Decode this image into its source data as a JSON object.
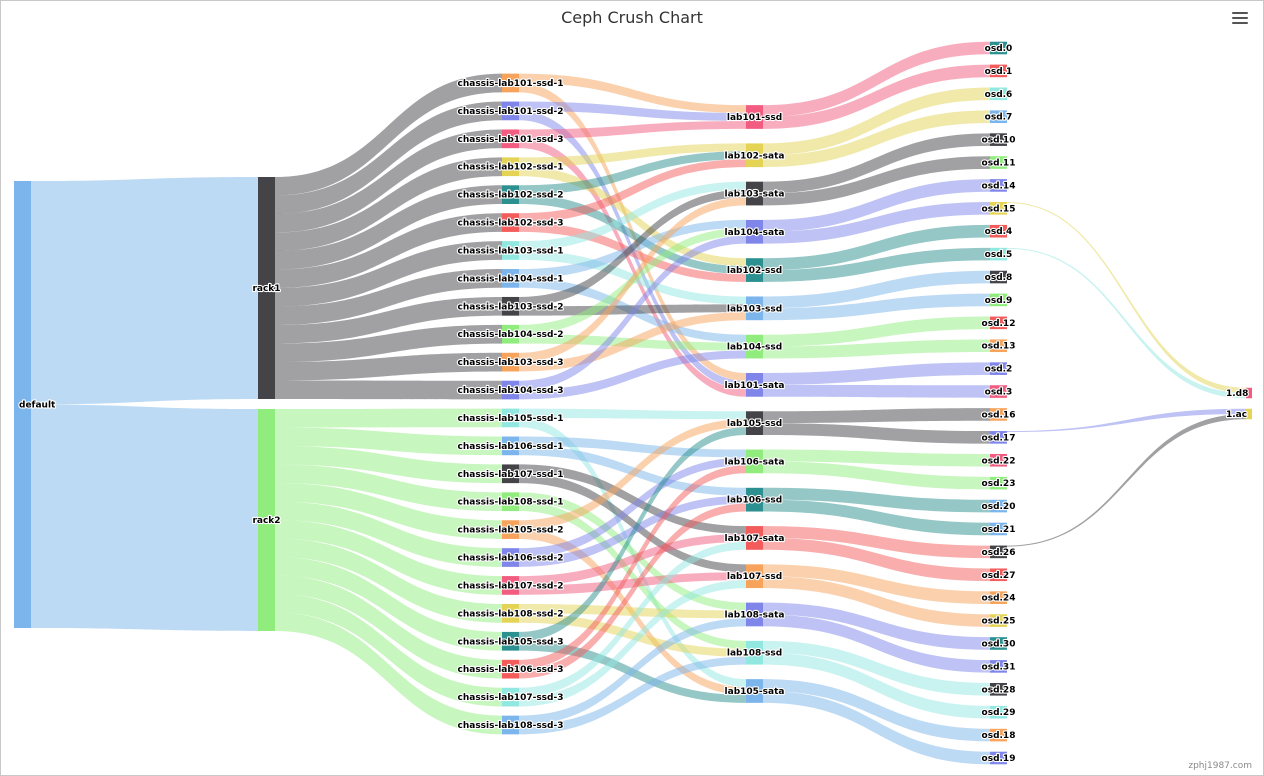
{
  "title": "Ceph Crush Chart",
  "credit": "zphj1987.com",
  "menu_icon": "hamburger-menu-icon",
  "chart_data": {
    "type": "sankey",
    "title": "Ceph Crush Chart",
    "columns": [
      [
        "default"
      ],
      [
        "rack1",
        "rack2"
      ],
      [
        "chassis-lab101-ssd-1",
        "chassis-lab101-ssd-2",
        "chassis-lab101-ssd-3",
        "chassis-lab102-ssd-1",
        "chassis-lab102-ssd-2",
        "chassis-lab102-ssd-3",
        "chassis-lab103-ssd-1",
        "chassis-lab104-ssd-1",
        "chassis-lab103-ssd-2",
        "chassis-lab104-ssd-2",
        "chassis-lab103-ssd-3",
        "chassis-lab104-ssd-3",
        "chassis-lab105-ssd-1",
        "chassis-lab106-ssd-1",
        "chassis-lab107-ssd-1",
        "chassis-lab108-ssd-1",
        "chassis-lab105-ssd-2",
        "chassis-lab106-ssd-2",
        "chassis-lab107-ssd-2",
        "chassis-lab108-ssd-2",
        "chassis-lab105-ssd-3",
        "chassis-lab106-ssd-3",
        "chassis-lab107-ssd-3",
        "chassis-lab108-ssd-3"
      ],
      [
        "lab101-ssd",
        "lab102-sata",
        "lab103-sata",
        "lab104-sata",
        "lab102-ssd",
        "lab103-ssd",
        "lab104-ssd",
        "lab101-sata",
        "lab105-ssd",
        "lab106-sata",
        "lab106-ssd",
        "lab107-sata",
        "lab107-ssd",
        "lab108-sata",
        "lab108-ssd",
        "lab105-sata"
      ],
      [
        "osd.0",
        "osd.1",
        "osd.6",
        "osd.7",
        "osd.10",
        "osd.11",
        "osd.14",
        "osd.15",
        "osd.4",
        "osd.5",
        "osd.8",
        "osd.9",
        "osd.12",
        "osd.13",
        "osd.2",
        "osd.3",
        "osd.16",
        "osd.17",
        "osd.22",
        "osd.23",
        "osd.20",
        "osd.21",
        "osd.26",
        "osd.27",
        "osd.24",
        "osd.25",
        "osd.30",
        "osd.31",
        "osd.28",
        "osd.29",
        "osd.18",
        "osd.19"
      ],
      [
        "1.d8",
        "1.ac"
      ]
    ],
    "links": [
      [
        "default",
        "rack1",
        12
      ],
      [
        "default",
        "rack2",
        12
      ],
      [
        "rack1",
        "chassis-lab101-ssd-1",
        1
      ],
      [
        "rack1",
        "chassis-lab101-ssd-2",
        1
      ],
      [
        "rack1",
        "chassis-lab101-ssd-3",
        1
      ],
      [
        "rack1",
        "chassis-lab102-ssd-1",
        1
      ],
      [
        "rack1",
        "chassis-lab102-ssd-2",
        1
      ],
      [
        "rack1",
        "chassis-lab102-ssd-3",
        1
      ],
      [
        "rack1",
        "chassis-lab103-ssd-1",
        1
      ],
      [
        "rack1",
        "chassis-lab104-ssd-1",
        1
      ],
      [
        "rack1",
        "chassis-lab103-ssd-2",
        1
      ],
      [
        "rack1",
        "chassis-lab104-ssd-2",
        1
      ],
      [
        "rack1",
        "chassis-lab103-ssd-3",
        1
      ],
      [
        "rack1",
        "chassis-lab104-ssd-3",
        1
      ],
      [
        "rack2",
        "chassis-lab105-ssd-1",
        1
      ],
      [
        "rack2",
        "chassis-lab106-ssd-1",
        1
      ],
      [
        "rack2",
        "chassis-lab107-ssd-1",
        1
      ],
      [
        "rack2",
        "chassis-lab108-ssd-1",
        1
      ],
      [
        "rack2",
        "chassis-lab105-ssd-2",
        1
      ],
      [
        "rack2",
        "chassis-lab106-ssd-2",
        1
      ],
      [
        "rack2",
        "chassis-lab107-ssd-2",
        1
      ],
      [
        "rack2",
        "chassis-lab108-ssd-2",
        1
      ],
      [
        "rack2",
        "chassis-lab105-ssd-3",
        1
      ],
      [
        "rack2",
        "chassis-lab106-ssd-3",
        1
      ],
      [
        "rack2",
        "chassis-lab107-ssd-3",
        1
      ],
      [
        "rack2",
        "chassis-lab108-ssd-3",
        1
      ],
      [
        "chassis-lab101-ssd-1",
        "lab101-ssd",
        0.5
      ],
      [
        "chassis-lab101-ssd-1",
        "lab101-sata",
        0.5
      ],
      [
        "chassis-lab101-ssd-2",
        "lab101-ssd",
        0.5
      ],
      [
        "chassis-lab101-ssd-2",
        "lab101-sata",
        0.5
      ],
      [
        "chassis-lab101-ssd-3",
        "lab101-ssd",
        0.5
      ],
      [
        "chassis-lab101-ssd-3",
        "lab101-sata",
        0.5
      ],
      [
        "chassis-lab102-ssd-1",
        "lab102-sata",
        0.5
      ],
      [
        "chassis-lab102-ssd-1",
        "lab102-ssd",
        0.5
      ],
      [
        "chassis-lab102-ssd-2",
        "lab102-sata",
        0.5
      ],
      [
        "chassis-lab102-ssd-2",
        "lab102-ssd",
        0.5
      ],
      [
        "chassis-lab102-ssd-3",
        "lab102-sata",
        0.5
      ],
      [
        "chassis-lab102-ssd-3",
        "lab102-ssd",
        0.5
      ],
      [
        "chassis-lab103-ssd-1",
        "lab103-sata",
        0.5
      ],
      [
        "chassis-lab103-ssd-1",
        "lab103-ssd",
        0.5
      ],
      [
        "chassis-lab104-ssd-1",
        "lab104-sata",
        0.5
      ],
      [
        "chassis-lab104-ssd-1",
        "lab104-ssd",
        0.5
      ],
      [
        "chassis-lab103-ssd-2",
        "lab103-sata",
        0.5
      ],
      [
        "chassis-lab103-ssd-2",
        "lab103-ssd",
        0.5
      ],
      [
        "chassis-lab104-ssd-2",
        "lab104-sata",
        0.5
      ],
      [
        "chassis-lab104-ssd-2",
        "lab104-ssd",
        0.5
      ],
      [
        "chassis-lab103-ssd-3",
        "lab103-sata",
        0.5
      ],
      [
        "chassis-lab103-ssd-3",
        "lab103-ssd",
        0.5
      ],
      [
        "chassis-lab104-ssd-3",
        "lab104-sata",
        0.5
      ],
      [
        "chassis-lab104-ssd-3",
        "lab104-ssd",
        0.5
      ],
      [
        "chassis-lab105-ssd-1",
        "lab105-ssd",
        0.5
      ],
      [
        "chassis-lab105-ssd-1",
        "lab105-sata",
        0.5
      ],
      [
        "chassis-lab106-ssd-1",
        "lab106-sata",
        0.5
      ],
      [
        "chassis-lab106-ssd-1",
        "lab106-ssd",
        0.5
      ],
      [
        "chassis-lab107-ssd-1",
        "lab107-sata",
        0.5
      ],
      [
        "chassis-lab107-ssd-1",
        "lab107-ssd",
        0.5
      ],
      [
        "chassis-lab108-ssd-1",
        "lab108-sata",
        0.5
      ],
      [
        "chassis-lab108-ssd-1",
        "lab108-ssd",
        0.5
      ],
      [
        "chassis-lab105-ssd-2",
        "lab105-ssd",
        0.5
      ],
      [
        "chassis-lab105-ssd-2",
        "lab105-sata",
        0.5
      ],
      [
        "chassis-lab106-ssd-2",
        "lab106-sata",
        0.5
      ],
      [
        "chassis-lab106-ssd-2",
        "lab106-ssd",
        0.5
      ],
      [
        "chassis-lab107-ssd-2",
        "lab107-sata",
        0.5
      ],
      [
        "chassis-lab107-ssd-2",
        "lab107-ssd",
        0.5
      ],
      [
        "chassis-lab108-ssd-2",
        "lab108-sata",
        0.5
      ],
      [
        "chassis-lab108-ssd-2",
        "lab108-ssd",
        0.5
      ],
      [
        "chassis-lab105-ssd-3",
        "lab105-ssd",
        0.5
      ],
      [
        "chassis-lab105-ssd-3",
        "lab105-sata",
        0.5
      ],
      [
        "chassis-lab106-ssd-3",
        "lab106-sata",
        0.5
      ],
      [
        "chassis-lab106-ssd-3",
        "lab106-ssd",
        0.5
      ],
      [
        "chassis-lab107-ssd-3",
        "lab107-sata",
        0.5
      ],
      [
        "chassis-lab107-ssd-3",
        "lab107-ssd",
        0.5
      ],
      [
        "chassis-lab108-ssd-3",
        "lab108-sata",
        0.5
      ],
      [
        "chassis-lab108-ssd-3",
        "lab108-ssd",
        0.5
      ],
      [
        "lab101-ssd",
        "osd.0",
        0.75
      ],
      [
        "lab101-ssd",
        "osd.1",
        0.75
      ],
      [
        "lab102-sata",
        "osd.6",
        0.75
      ],
      [
        "lab102-sata",
        "osd.7",
        0.75
      ],
      [
        "lab103-sata",
        "osd.10",
        0.75
      ],
      [
        "lab103-sata",
        "osd.11",
        0.75
      ],
      [
        "lab104-sata",
        "osd.14",
        0.75
      ],
      [
        "lab104-sata",
        "osd.15",
        0.75
      ],
      [
        "lab102-ssd",
        "osd.4",
        0.75
      ],
      [
        "lab102-ssd",
        "osd.5",
        0.75
      ],
      [
        "lab103-ssd",
        "osd.8",
        0.75
      ],
      [
        "lab103-ssd",
        "osd.9",
        0.75
      ],
      [
        "lab104-ssd",
        "osd.12",
        0.75
      ],
      [
        "lab104-ssd",
        "osd.13",
        0.75
      ],
      [
        "lab101-sata",
        "osd.2",
        0.75
      ],
      [
        "lab101-sata",
        "osd.3",
        0.75
      ],
      [
        "lab105-ssd",
        "osd.16",
        0.75
      ],
      [
        "lab105-ssd",
        "osd.17",
        0.75
      ],
      [
        "lab106-sata",
        "osd.22",
        0.75
      ],
      [
        "lab106-sata",
        "osd.23",
        0.75
      ],
      [
        "lab106-ssd",
        "osd.20",
        0.75
      ],
      [
        "lab106-ssd",
        "osd.21",
        0.75
      ],
      [
        "lab107-sata",
        "osd.26",
        0.75
      ],
      [
        "lab107-sata",
        "osd.27",
        0.75
      ],
      [
        "lab107-ssd",
        "osd.24",
        0.75
      ],
      [
        "lab107-ssd",
        "osd.25",
        0.75
      ],
      [
        "lab108-sata",
        "osd.30",
        0.75
      ],
      [
        "lab108-sata",
        "osd.31",
        0.75
      ],
      [
        "lab108-ssd",
        "osd.28",
        0.75
      ],
      [
        "lab108-ssd",
        "osd.29",
        0.75
      ],
      [
        "lab105-sata",
        "osd.18",
        0.75
      ],
      [
        "lab105-sata",
        "osd.19",
        0.75
      ],
      [
        "osd.15",
        "1.d8",
        0.05
      ],
      [
        "osd.5",
        "1.d8",
        0.05
      ],
      [
        "osd.17",
        "1.ac",
        0.05
      ],
      [
        "osd.26",
        "1.ac",
        0.05
      ]
    ],
    "node_colors": {
      "default": "#7cb5ec",
      "rack1": "#434348",
      "rack2": "#90ed7d",
      "chassis-lab101-ssd-1": "#f7a35c",
      "chassis-lab101-ssd-2": "#8085e9",
      "chassis-lab101-ssd-3": "#f15c80",
      "chassis-lab102-ssd-1": "#e4d354",
      "chassis-lab102-ssd-2": "#2b908f",
      "chassis-lab102-ssd-3": "#f45b5b",
      "chassis-lab103-ssd-1": "#91e8e1",
      "chassis-lab104-ssd-1": "#7cb5ec",
      "chassis-lab103-ssd-2": "#434348",
      "chassis-lab104-ssd-2": "#90ed7d",
      "chassis-lab103-ssd-3": "#f7a35c",
      "chassis-lab104-ssd-3": "#8085e9",
      "chassis-lab105-ssd-1": "#91e8e1",
      "chassis-lab106-ssd-1": "#7cb5ec",
      "chassis-lab107-ssd-1": "#434348",
      "chassis-lab108-ssd-1": "#90ed7d",
      "chassis-lab105-ssd-2": "#f7a35c",
      "chassis-lab106-ssd-2": "#8085e9",
      "chassis-lab107-ssd-2": "#f15c80",
      "chassis-lab108-ssd-2": "#e4d354",
      "chassis-lab105-ssd-3": "#2b908f",
      "chassis-lab106-ssd-3": "#f45b5b",
      "chassis-lab107-ssd-3": "#91e8e1",
      "chassis-lab108-ssd-3": "#7cb5ec",
      "lab101-ssd": "#f15c80",
      "lab102-sata": "#e4d354",
      "lab103-sata": "#434348",
      "lab104-sata": "#8085e9",
      "lab102-ssd": "#2b908f",
      "lab103-ssd": "#7cb5ec",
      "lab104-ssd": "#90ed7d",
      "lab101-sata": "#8085e9",
      "lab105-ssd": "#434348",
      "lab106-sata": "#90ed7d",
      "lab106-ssd": "#2b908f",
      "lab107-sata": "#f45b5b",
      "lab107-ssd": "#f7a35c",
      "lab108-sata": "#8085e9",
      "lab108-ssd": "#91e8e1",
      "lab105-sata": "#7cb5ec",
      "osd.0": "#2b908f",
      "osd.1": "#f45b5b",
      "osd.6": "#91e8e1",
      "osd.7": "#7cb5ec",
      "osd.10": "#434348",
      "osd.11": "#90ed7d",
      "osd.14": "#8085e9",
      "osd.15": "#e4d354",
      "osd.4": "#f45b5b",
      "osd.5": "#91e8e1",
      "osd.8": "#434348",
      "osd.9": "#90ed7d",
      "osd.12": "#f45b5b",
      "osd.13": "#f7a35c",
      "osd.2": "#8085e9",
      "osd.3": "#f15c80",
      "osd.16": "#f7a35c",
      "osd.17": "#8085e9",
      "osd.22": "#f15c80",
      "osd.23": "#90ed7d",
      "osd.20": "#7cb5ec",
      "osd.21": "#7cb5ec",
      "osd.26": "#434348",
      "osd.27": "#f45b5b",
      "osd.24": "#f7a35c",
      "osd.25": "#e4d354",
      "osd.30": "#2b908f",
      "osd.31": "#8085e9",
      "osd.28": "#434348",
      "osd.29": "#91e8e1",
      "osd.18": "#f7a35c",
      "osd.19": "#8085e9",
      "1.d8": "#f15c80",
      "1.ac": "#e4d354"
    }
  }
}
